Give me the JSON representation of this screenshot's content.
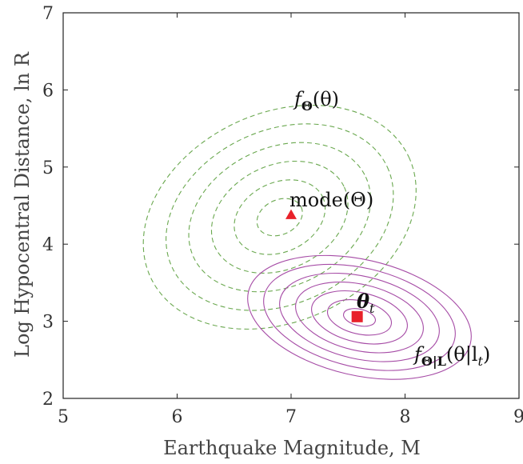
{
  "chart_data": {
    "type": "scatter",
    "xlabel": "Earthquake Magnitude, M",
    "ylabel": "Log Hypocentral Distance, ln R",
    "xlim": [
      5,
      9
    ],
    "ylim": [
      2,
      7
    ],
    "xticks": [
      "5",
      "6",
      "7",
      "8",
      "9"
    ],
    "yticks": [
      "2",
      "3",
      "4",
      "5",
      "6",
      "7"
    ],
    "grid": false,
    "series": [
      {
        "kind": "contour",
        "style": "dashed",
        "color": "#6aa84f",
        "center": [
          6.9,
          4.35
        ],
        "levels": 6,
        "rotation_deg": -25,
        "outer_semi_axes": [
          1.25,
          1.35
        ]
      },
      {
        "kind": "contour",
        "style": "solid",
        "color": "#a64ca6",
        "center": [
          7.6,
          3.05
        ],
        "levels": 7,
        "rotation_deg": 13,
        "outer_semi_axes": [
          1.0,
          0.75
        ]
      }
    ],
    "markers": [
      {
        "name": "mode",
        "shape": "triangle",
        "color": "#e8212a",
        "x": 7.0,
        "y": 4.38
      },
      {
        "name": "theta_t",
        "shape": "square",
        "color": "#e8212a",
        "x": 7.58,
        "y": 3.06
      }
    ],
    "annotations": {
      "prior": "f",
      "prior_sub": "Θ",
      "prior_arg": "(θ)",
      "mode": "mode(Θ)",
      "theta": "θ",
      "theta_sub": "t",
      "post": "f",
      "post_sub": "Θ|L",
      "post_arg": "(θ|l",
      "post_arg_sub": "t",
      "post_close": ")"
    }
  }
}
